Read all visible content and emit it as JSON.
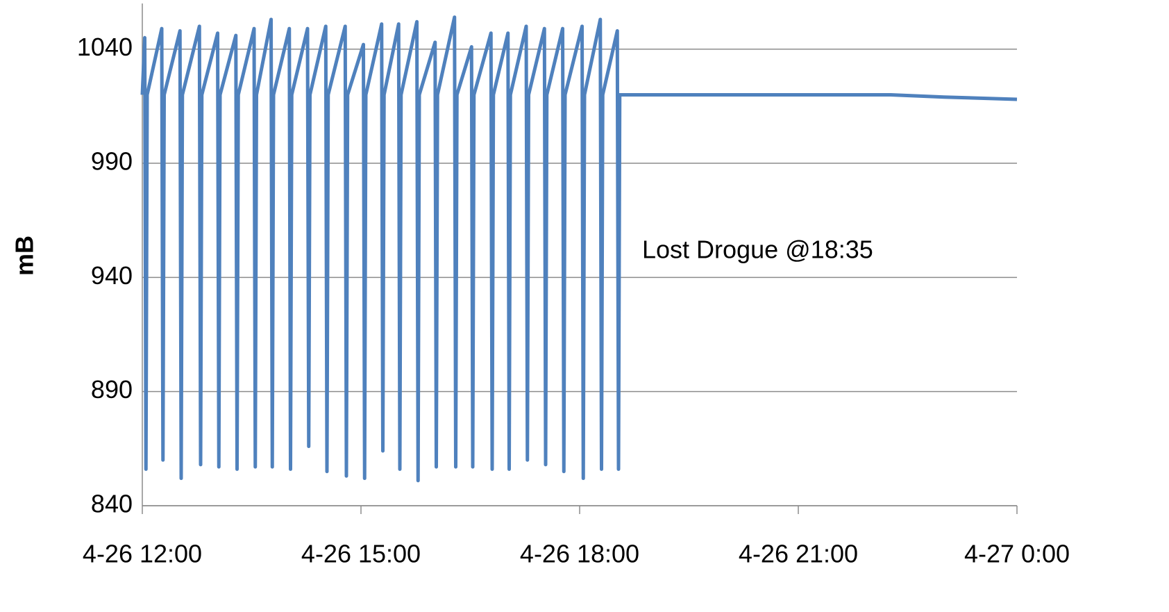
{
  "chart_data": {
    "type": "line",
    "ylabel": "mB",
    "annotation": "Lost Drogue @18:35",
    "color": "#4f81bd",
    "grid": true,
    "ylim": [
      840,
      1060
    ],
    "yticks": [
      840,
      890,
      940,
      990,
      1040
    ],
    "xlim": [
      "4-26 12:00",
      "4-27 0:00"
    ],
    "xticks": [
      "4-26 12:00",
      "4-26 15:00",
      "4-26 18:00",
      "4-26 21:00",
      "4-27 0:00"
    ],
    "x": [
      "4-26 12:00",
      "4-26 12:02",
      "4-26 12:03",
      "4-26 12:04",
      "4-26 12:16",
      "4-26 12:17",
      "4-26 12:18",
      "4-26 12:31",
      "4-26 12:32",
      "4-26 12:33",
      "4-26 12:47",
      "4-26 12:48",
      "4-26 12:49",
      "4-26 13:02",
      "4-26 13:03",
      "4-26 13:04",
      "4-26 13:17",
      "4-26 13:18",
      "4-26 13:19",
      "4-26 13:32",
      "4-26 13:33",
      "4-26 13:34",
      "4-26 13:46",
      "4-26 13:47",
      "4-26 13:48",
      "4-26 14:01",
      "4-26 14:02",
      "4-26 14:03",
      "4-26 14:16",
      "4-26 14:17",
      "4-26 14:18",
      "4-26 14:31",
      "4-26 14:32",
      "4-26 14:33",
      "4-26 14:47",
      "4-26 14:48",
      "4-26 14:49",
      "4-26 15:02",
      "4-26 15:03",
      "4-26 15:04",
      "4-26 15:17",
      "4-26 15:18",
      "4-26 15:19",
      "4-26 15:31",
      "4-26 15:32",
      "4-26 15:33",
      "4-26 15:46",
      "4-26 15:47",
      "4-26 15:48",
      "4-26 16:01",
      "4-26 16:02",
      "4-26 16:03",
      "4-26 16:17",
      "4-26 16:18",
      "4-26 16:19",
      "4-26 16:31",
      "4-26 16:32",
      "4-26 16:33",
      "4-26 16:47",
      "4-26 16:48",
      "4-26 16:49",
      "4-26 17:01",
      "4-26 17:02",
      "4-26 17:03",
      "4-26 17:16",
      "4-26 17:17",
      "4-26 17:18",
      "4-26 17:31",
      "4-26 17:32",
      "4-26 17:33",
      "4-26 17:46",
      "4-26 17:47",
      "4-26 17:48",
      "4-26 18:02",
      "4-26 18:03",
      "4-26 18:04",
      "4-26 18:17",
      "4-26 18:18",
      "4-26 18:19",
      "4-26 18:31",
      "4-26 18:32",
      "4-26 18:33",
      "4-26 18:47",
      "4-26 22:16",
      "4-26 23:00",
      "4-27 0:00"
    ],
    "values": [
      1020,
      1045,
      856,
      1020,
      1049,
      860,
      1020,
      1048,
      852,
      1020,
      1050,
      858,
      1020,
      1047,
      857,
      1020,
      1046,
      856,
      1020,
      1049,
      857,
      1020,
      1053,
      857,
      1020,
      1049,
      856,
      1020,
      1049,
      866,
      1020,
      1050,
      855,
      1020,
      1050,
      853,
      1020,
      1042,
      852,
      1020,
      1051,
      864,
      1020,
      1051,
      856,
      1020,
      1052,
      851,
      1020,
      1043,
      857,
      1020,
      1054,
      857,
      1020,
      1041,
      857,
      1020,
      1047,
      856,
      1020,
      1047,
      856,
      1020,
      1050,
      860,
      1020,
      1049,
      858,
      1020,
      1049,
      855,
      1020,
      1050,
      852,
      1020,
      1053,
      856,
      1020,
      1048,
      856,
      1020,
      1020,
      1020,
      1019,
      1018
    ]
  }
}
